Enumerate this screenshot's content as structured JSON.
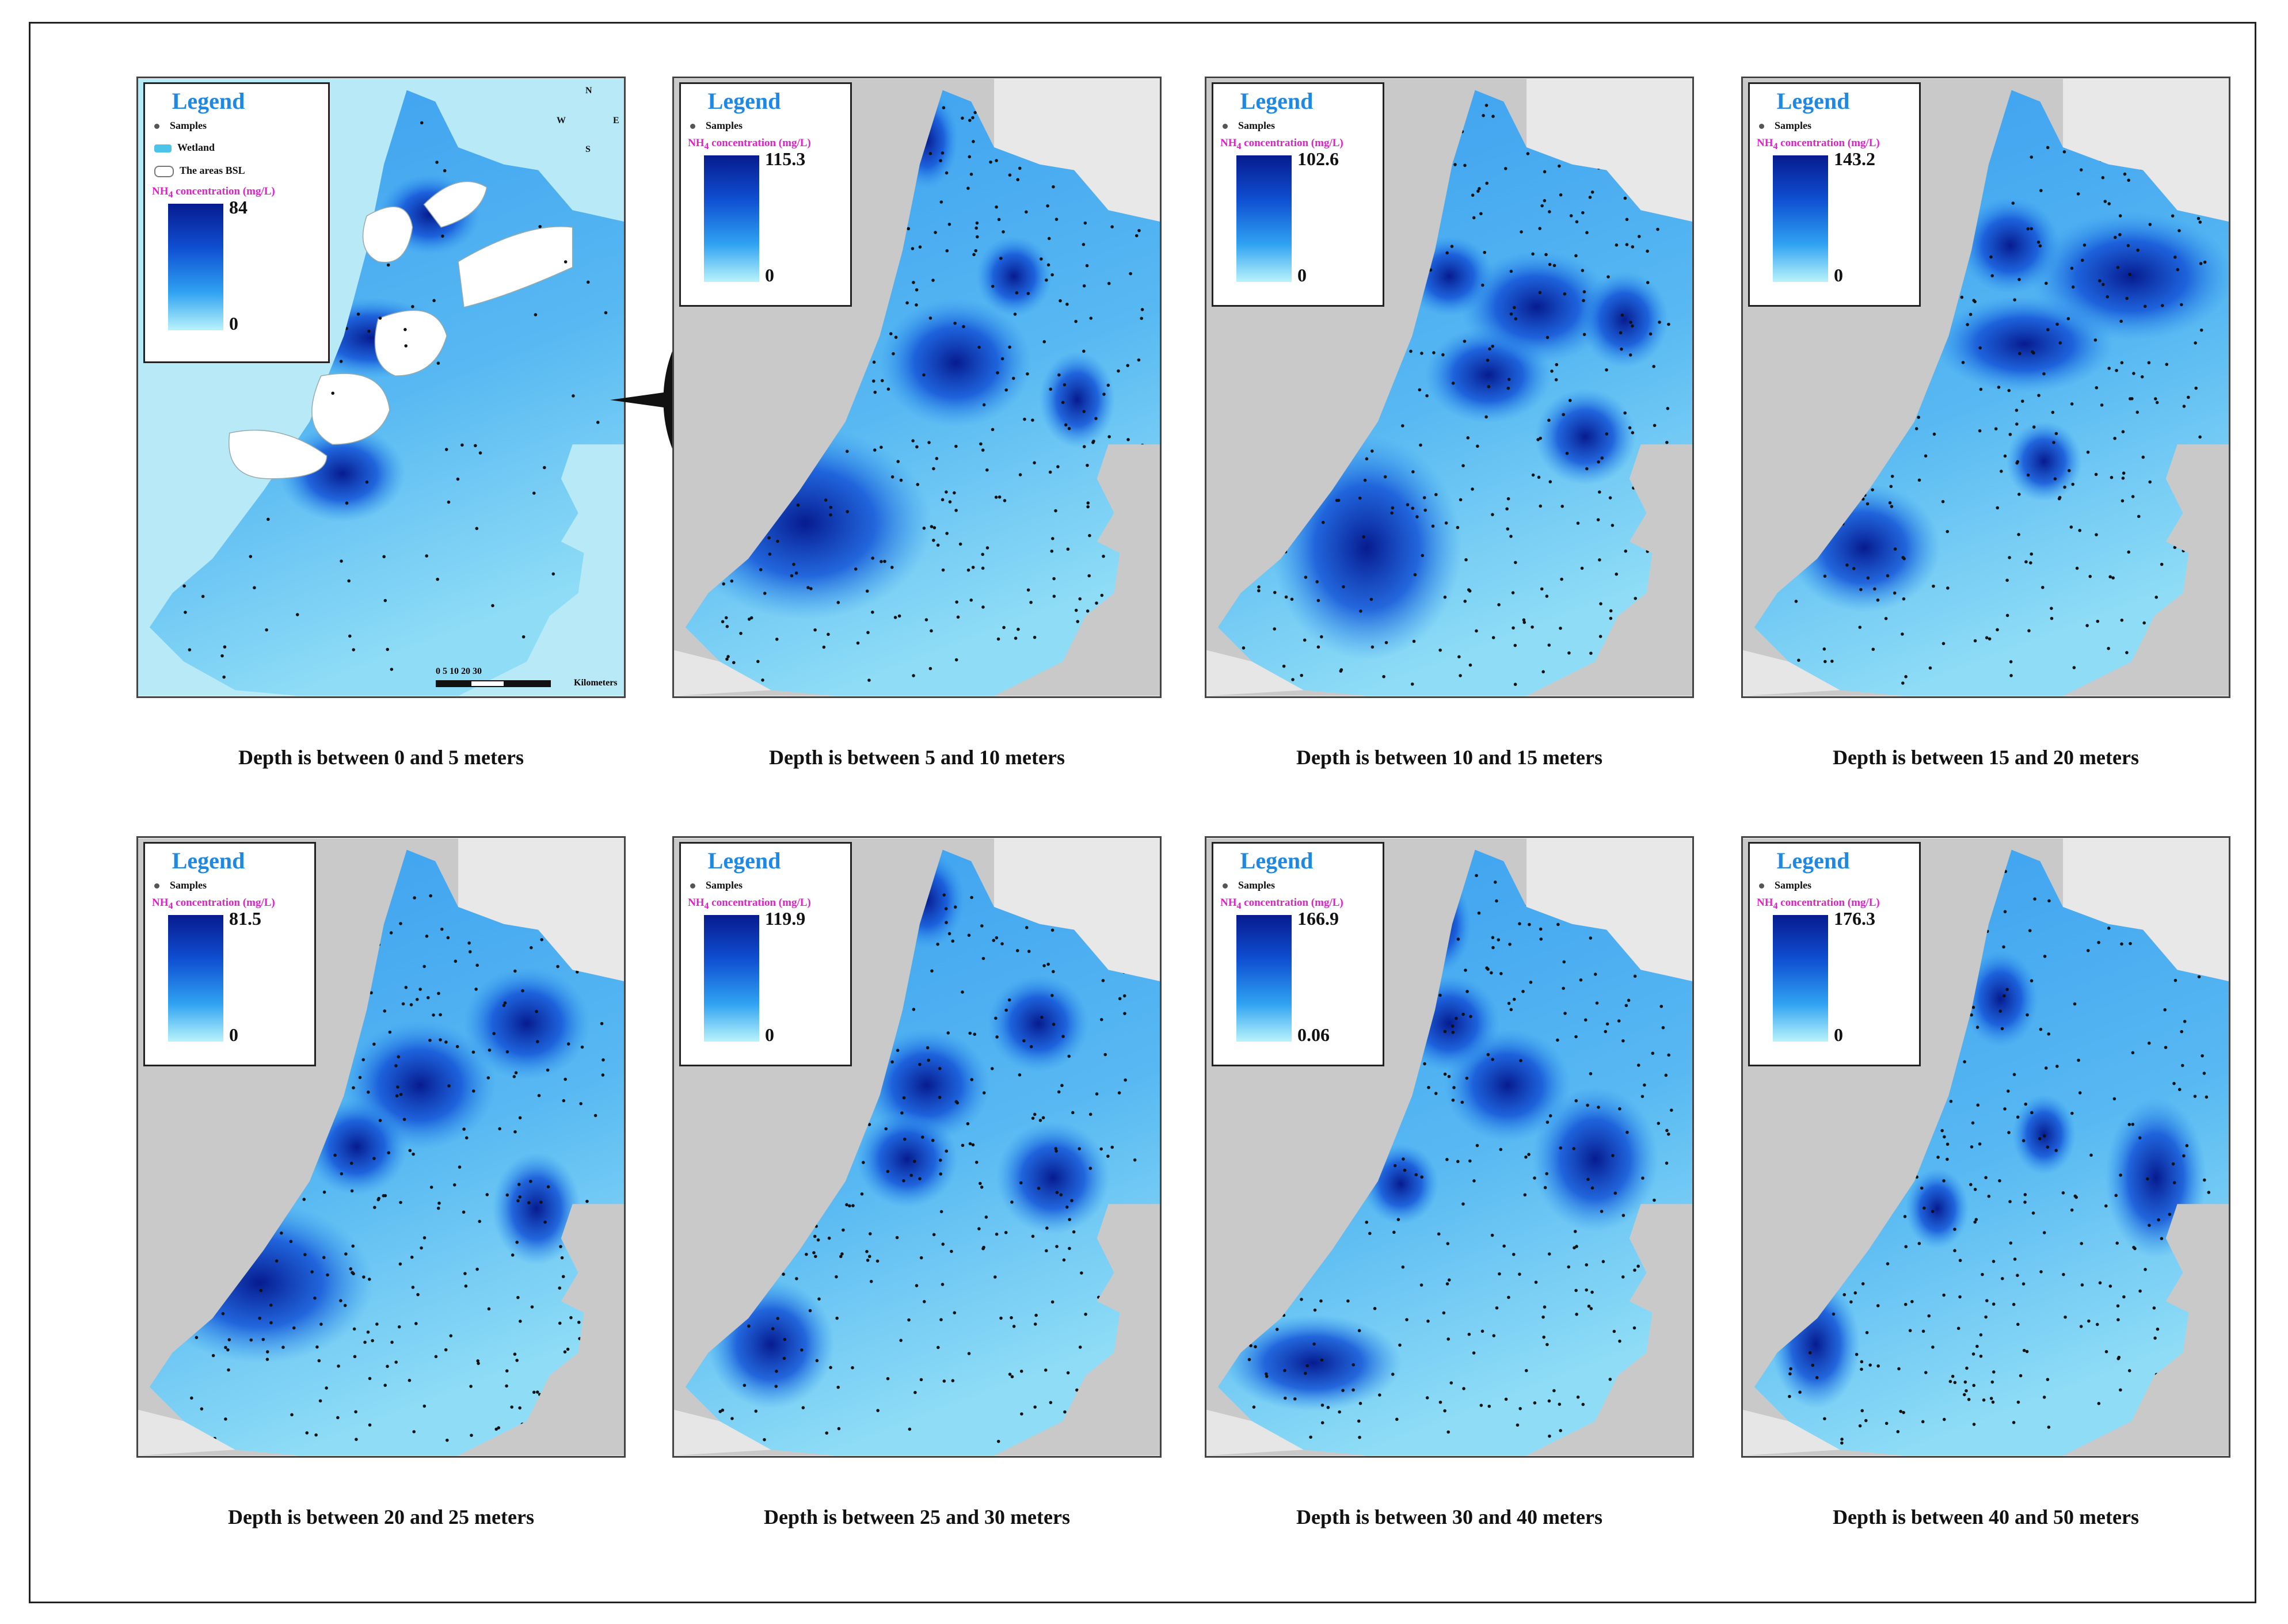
{
  "figure": {
    "legend_title": "Legend",
    "samples_label": "Samples",
    "wetland_label": "Wetland",
    "bsl_label": "The areas BSL",
    "concentration_label_prefix": "NH",
    "concentration_label_sub": "4",
    "concentration_label_suffix": " concentration (mg/L)",
    "scale_ticks": "0   5  10       20        30",
    "scale_units": "Kilometers",
    "compass": {
      "n": "N",
      "s": "S",
      "e": "E",
      "w": "W"
    },
    "colors": {
      "high": "#071b8f",
      "mid": "#2fa2f2",
      "low": "#b9f3fb",
      "sea": "#b8e9f7",
      "land": "#c9c9c9",
      "bsl_area": "#ffffff",
      "concentration_label": "#e020c8",
      "legend_title": "#1e88e5"
    }
  },
  "panels": [
    {
      "id": "p1",
      "caption": "Depth is between 0 and 5 meters",
      "max": "84",
      "min": "0",
      "hotspots": [
        [
          0.32,
          0.2,
          0.09,
          0.06
        ],
        [
          0.48,
          0.42,
          0.12,
          0.05
        ],
        [
          0.42,
          0.64,
          0.1,
          0.06
        ],
        [
          0.25,
          0.34,
          0.1,
          0.06
        ],
        [
          0.6,
          0.22,
          0.08,
          0.05
        ]
      ]
    },
    {
      "id": "p2",
      "caption": "Depth is between 5 and 10 meters",
      "max": "115.3",
      "min": "0",
      "hotspots": [
        [
          0.27,
          0.72,
          0.2,
          0.12
        ],
        [
          0.58,
          0.46,
          0.12,
          0.08
        ],
        [
          0.52,
          0.1,
          0.05,
          0.06
        ],
        [
          0.83,
          0.52,
          0.06,
          0.06
        ],
        [
          0.7,
          0.32,
          0.06,
          0.05
        ]
      ]
    },
    {
      "id": "p3",
      "caption": "Depth is between 10 and 15 meters",
      "max": "102.6",
      "min": "0",
      "hotspots": [
        [
          0.33,
          0.76,
          0.15,
          0.14
        ],
        [
          0.58,
          0.48,
          0.1,
          0.06
        ],
        [
          0.78,
          0.58,
          0.08,
          0.06
        ],
        [
          0.68,
          0.37,
          0.12,
          0.07
        ],
        [
          0.5,
          0.32,
          0.07,
          0.05
        ],
        [
          0.86,
          0.39,
          0.07,
          0.06
        ]
      ]
    },
    {
      "id": "p4",
      "caption": "Depth is between 15 and 20 meters",
      "max": "143.2",
      "min": "0",
      "hotspots": [
        [
          0.58,
          0.43,
          0.14,
          0.06
        ],
        [
          0.8,
          0.32,
          0.16,
          0.08
        ],
        [
          0.55,
          0.27,
          0.08,
          0.06
        ],
        [
          0.25,
          0.76,
          0.12,
          0.08
        ],
        [
          0.62,
          0.62,
          0.06,
          0.05
        ]
      ]
    },
    {
      "id": "p5",
      "caption": "Depth is between 20 and 25 meters",
      "max": "81.5",
      "min": "0",
      "hotspots": [
        [
          0.25,
          0.72,
          0.18,
          0.1
        ],
        [
          0.58,
          0.4,
          0.12,
          0.08
        ],
        [
          0.8,
          0.3,
          0.1,
          0.07
        ],
        [
          0.45,
          0.5,
          0.08,
          0.06
        ],
        [
          0.82,
          0.6,
          0.07,
          0.07
        ],
        [
          0.35,
          0.3,
          0.08,
          0.06
        ]
      ]
    },
    {
      "id": "p6",
      "caption": "Depth is between 25 and 30 meters",
      "max": "119.9",
      "min": "0",
      "hotspots": [
        [
          0.52,
          0.4,
          0.1,
          0.07
        ],
        [
          0.78,
          0.55,
          0.09,
          0.07
        ],
        [
          0.75,
          0.3,
          0.08,
          0.06
        ],
        [
          0.48,
          0.52,
          0.08,
          0.06
        ],
        [
          0.2,
          0.82,
          0.1,
          0.08
        ],
        [
          0.52,
          0.1,
          0.06,
          0.06
        ]
      ]
    },
    {
      "id": "p7",
      "caption": "Depth is between 30 and 40 meters",
      "max": "166.9",
      "min": "0.06",
      "hotspots": [
        [
          0.8,
          0.52,
          0.1,
          0.09
        ],
        [
          0.62,
          0.4,
          0.1,
          0.07
        ],
        [
          0.5,
          0.3,
          0.08,
          0.06
        ],
        [
          0.48,
          0.14,
          0.05,
          0.06
        ],
        [
          0.22,
          0.85,
          0.14,
          0.06
        ],
        [
          0.4,
          0.56,
          0.06,
          0.05
        ]
      ]
    },
    {
      "id": "p8",
      "caption": "Depth is between 40 and 50 meters",
      "max": "176.3",
      "min": "0",
      "hotspots": [
        [
          0.85,
          0.55,
          0.08,
          0.1
        ],
        [
          0.53,
          0.26,
          0.06,
          0.06
        ],
        [
          0.62,
          0.48,
          0.05,
          0.05
        ],
        [
          0.4,
          0.6,
          0.05,
          0.05
        ],
        [
          0.15,
          0.82,
          0.07,
          0.08
        ]
      ]
    }
  ]
}
